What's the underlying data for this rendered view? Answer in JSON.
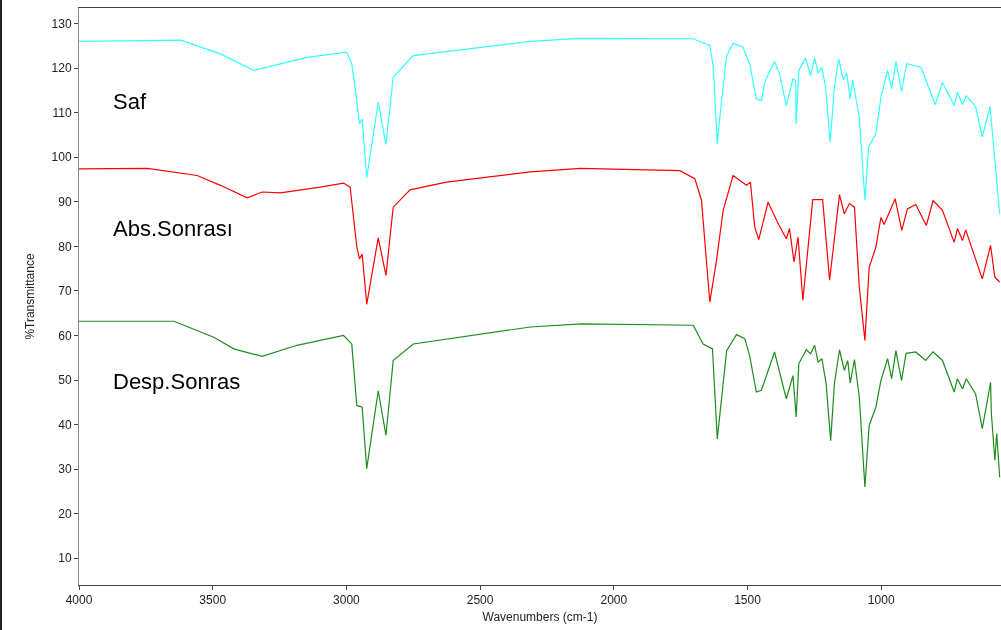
{
  "chart_data": {
    "type": "line",
    "xlabel": "Wavenumbers (cm-1)",
    "ylabel": "%Transmittance",
    "xlim": [
      4000,
      552
    ],
    "ylim": [
      4,
      133.5
    ],
    "xticks": [
      4000,
      3500,
      3000,
      2500,
      2000,
      1500,
      1000
    ],
    "yticks": [
      10,
      20,
      30,
      40,
      50,
      60,
      70,
      80,
      90,
      100,
      110,
      120,
      130
    ],
    "grid": false,
    "legend": false,
    "marker": "none",
    "line_style": "solid",
    "series": [
      {
        "name": "Saf",
        "color": "#33ffff",
        "x": [
          4000,
          3620,
          3471,
          3347,
          3148,
          2999,
          2980,
          2961,
          2951,
          2941,
          2924,
          2881,
          2852,
          2825,
          2750,
          2312,
          2125,
          1703,
          1641,
          1628,
          1613,
          1601,
          1578,
          1554,
          1517,
          1492,
          1467,
          1448,
          1436,
          1399,
          1380,
          1355,
          1330,
          1320,
          1318,
          1308,
          1283,
          1264,
          1249,
          1236,
          1222,
          1208,
          1191,
          1175,
          1159,
          1142,
          1129,
          1116,
          1107,
          1082,
          1061,
          1047,
          1020,
          1001,
          976,
          961,
          945,
          924,
          905,
          851,
          798,
          771,
          727,
          715,
          696,
          682,
          647,
          622,
          593,
          557
        ],
        "values": [
          126.0,
          126.3,
          123.2,
          119.5,
          122.4,
          123.6,
          121.0,
          112.7,
          107.5,
          108.6,
          95.4,
          112.3,
          102.9,
          118.0,
          122.8,
          126.0,
          126.7,
          126.6,
          125.1,
          120.2,
          103.0,
          110.5,
          122.8,
          125.6,
          124.7,
          121.0,
          113.1,
          112.7,
          116.8,
          121.5,
          118.7,
          111.6,
          117.6,
          117.2,
          107.5,
          119.5,
          122.3,
          118.3,
          122.3,
          118.9,
          120.1,
          115.7,
          103.4,
          115.7,
          122.1,
          117.4,
          118.9,
          113.1,
          117.4,
          109.0,
          90.4,
          102.3,
          105.3,
          113.5,
          119.5,
          115.4,
          121.5,
          114.8,
          121.0,
          120.2,
          111.8,
          116.8,
          111.6,
          114.6,
          111.8,
          113.8,
          111.4,
          104.5,
          111.4,
          87.3
        ]
      },
      {
        "name": "Abs.Sonrası",
        "color": "#ff0000",
        "x": [
          4000,
          3744,
          3558,
          3471,
          3371,
          3315,
          3247,
          3098,
          3011,
          2986,
          2961,
          2951,
          2941,
          2924,
          2881,
          2852,
          2825,
          2762,
          2626,
          2312,
          2125,
          1753,
          1697,
          1672,
          1641,
          1616,
          1591,
          1554,
          1504,
          1489,
          1473,
          1458,
          1423,
          1386,
          1355,
          1343,
          1326,
          1311,
          1293,
          1256,
          1219,
          1193,
          1156,
          1138,
          1119,
          1100,
          1082,
          1061,
          1045,
          1020,
          1001,
          989,
          948,
          923,
          902,
          871,
          831,
          806,
          771,
          727,
          715,
          696,
          684,
          622,
          591,
          575,
          557
        ],
        "values": [
          97.4,
          97.5,
          95.9,
          93.7,
          90.9,
          92.2,
          92.0,
          93.3,
          94.2,
          93.3,
          79.8,
          77.2,
          78.3,
          67.0,
          81.9,
          73.5,
          88.8,
          92.7,
          94.4,
          96.7,
          97.5,
          97.0,
          95.2,
          90.3,
          67.5,
          76.8,
          88.1,
          95.9,
          93.7,
          94.4,
          84.3,
          81.5,
          89.9,
          85.2,
          81.7,
          84.0,
          76.5,
          82.1,
          67.9,
          90.5,
          90.5,
          72.4,
          91.6,
          87.3,
          89.6,
          88.8,
          70.9,
          58.9,
          75.3,
          79.8,
          86.5,
          84.9,
          90.7,
          83.6,
          88.4,
          89.4,
          84.7,
          90.3,
          88.1,
          80.9,
          84.0,
          81.3,
          83.7,
          72.7,
          80.2,
          73.1,
          72.0
        ]
      },
      {
        "name": "Desp.Sonras",
        "color": "#1e8c1e",
        "x": [
          4000,
          3645,
          3496,
          3421,
          3315,
          3185,
          3011,
          2980,
          2961,
          2941,
          2924,
          2881,
          2852,
          2825,
          2750,
          2312,
          2121,
          1703,
          1666,
          1631,
          1613,
          1578,
          1541,
          1510,
          1492,
          1467,
          1448,
          1399,
          1355,
          1330,
          1318,
          1308,
          1280,
          1264,
          1249,
          1236,
          1222,
          1206,
          1189,
          1175,
          1156,
          1138,
          1125,
          1116,
          1100,
          1082,
          1061,
          1045,
          1020,
          1001,
          976,
          961,
          945,
          924,
          907,
          871,
          834,
          806,
          771,
          727,
          715,
          696,
          682,
          647,
          622,
          603,
          591,
          588,
          575,
          568,
          557
        ],
        "values": [
          63.2,
          63.2,
          59.6,
          57.0,
          55.3,
          57.8,
          60.0,
          58.1,
          44.3,
          43.9,
          30.1,
          47.6,
          37.6,
          54.4,
          58.1,
          61.9,
          62.6,
          62.3,
          58.1,
          57.0,
          36.8,
          56.6,
          60.2,
          59.3,
          55.5,
          47.3,
          47.7,
          56.3,
          45.8,
          51.0,
          41.7,
          53.7,
          56.8,
          55.9,
          57.8,
          54.0,
          54.8,
          49.2,
          36.4,
          49.2,
          56.8,
          52.2,
          54.4,
          49.3,
          54.6,
          46.2,
          26.0,
          39.8,
          43.9,
          49.9,
          54.8,
          50.3,
          56.6,
          49.9,
          56.0,
          56.3,
          54.4,
          56.3,
          54.4,
          47.3,
          50.3,
          48.0,
          50.3,
          46.9,
          39.1,
          45.4,
          49.5,
          42.5,
          32.0,
          38.0,
          28.2
        ]
      }
    ]
  }
}
